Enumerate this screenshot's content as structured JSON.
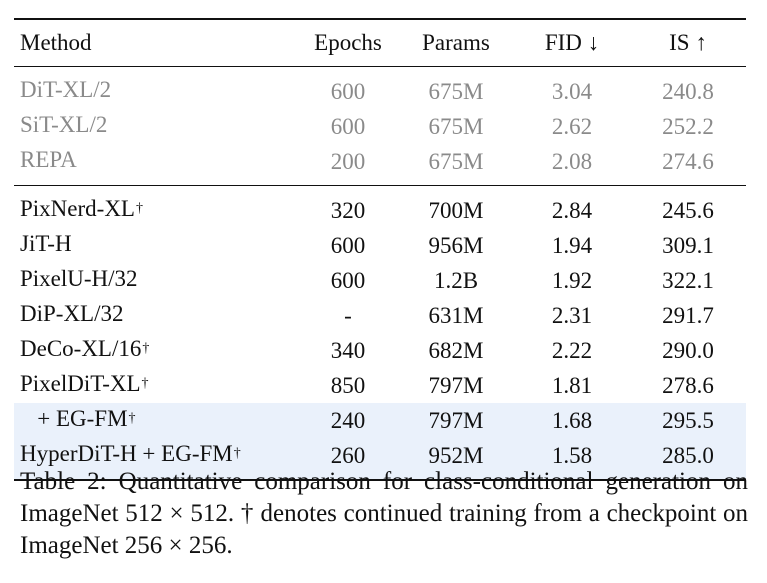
{
  "table": {
    "headers": [
      "Method",
      "Epochs",
      "Params",
      "FID ↓",
      "IS ↑"
    ],
    "baseline_rows": [
      {
        "method": "DiT-XL/2",
        "dagger": "",
        "epochs": "600",
        "params": "675M",
        "fid": "3.04",
        "is": "240.8"
      },
      {
        "method": "SiT-XL/2",
        "dagger": "",
        "epochs": "600",
        "params": "675M",
        "fid": "2.62",
        "is": "252.2"
      },
      {
        "method": "REPA",
        "dagger": "",
        "epochs": "200",
        "params": "675M",
        "fid": "2.08",
        "is": "274.6"
      }
    ],
    "main_rows": [
      {
        "method": "PixNerd-XL",
        "dagger": "†",
        "epochs": "320",
        "params": "700M",
        "fid": "2.84",
        "is": "245.6",
        "highlight": false
      },
      {
        "method": "JiT-H",
        "dagger": "",
        "epochs": "600",
        "params": "956M",
        "fid": "1.94",
        "is": "309.1",
        "highlight": false
      },
      {
        "method": "PixelU-H/32",
        "dagger": "",
        "epochs": "600",
        "params": "1.2B",
        "fid": "1.92",
        "is": "322.1",
        "highlight": false
      },
      {
        "method": "DiP-XL/32",
        "dagger": "",
        "epochs": "-",
        "params": "631M",
        "fid": "2.31",
        "is": "291.7",
        "highlight": false
      },
      {
        "method": "DeCo-XL/16",
        "dagger": "†",
        "epochs": "340",
        "params": "682M",
        "fid": "2.22",
        "is": "290.0",
        "highlight": false
      },
      {
        "method": "PixelDiT-XL",
        "dagger": "†",
        "epochs": "850",
        "params": "797M",
        "fid": "1.81",
        "is": "278.6",
        "highlight": false
      },
      {
        "method": "   + EG-FM",
        "dagger": "†",
        "epochs": "240",
        "params": "797M",
        "fid": "1.68",
        "is": "295.5",
        "highlight": true
      },
      {
        "method": "HyperDiT-H + EG-FM",
        "dagger": "†",
        "epochs": "260",
        "params": "952M",
        "fid": "1.58",
        "is": "285.0",
        "highlight": true
      }
    ],
    "highlight_color": "#eaf1fb",
    "baseline_color": "#8a8a8a"
  },
  "caption": {
    "text": "Table 2: Quantitative comparison for class-conditional generation on ImageNet 512 × 512. † denotes continued training from a checkpoint on ImageNet 256 × 256."
  }
}
